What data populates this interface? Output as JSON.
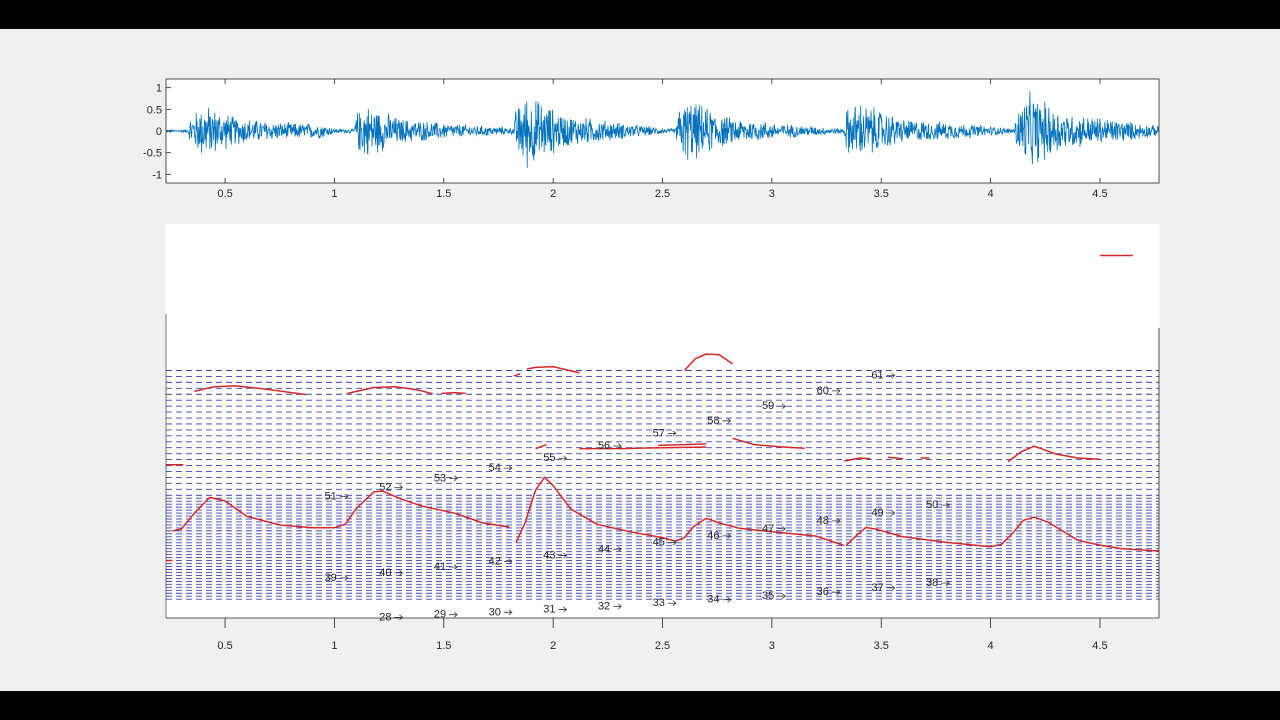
{
  "colors": {
    "background": "#f0f0f0",
    "axes_bg": "#ffffff",
    "waveform": "#0072bd",
    "pitch": "#d62728",
    "grid": "#3a44b8",
    "text": "#262626"
  },
  "chart_data": [
    {
      "type": "line",
      "name": "waveform",
      "title": "",
      "xlabel": "",
      "ylabel": "",
      "xlim": [
        0.23,
        4.77
      ],
      "ylim": [
        -1.2,
        1.2
      ],
      "xticks": [
        0.5,
        1,
        1.5,
        2,
        2.5,
        3,
        3.5,
        4,
        4.5
      ],
      "xtick_labels": [
        "0.5",
        "1",
        "1.5",
        "2",
        "2.5",
        "3",
        "3.5",
        "4",
        "4.5"
      ],
      "yticks": [
        1,
        0.5,
        0,
        -0.5,
        -1
      ],
      "ytick_labels": [
        "1",
        "0.5",
        "0",
        "-0.5",
        "-1"
      ],
      "envelope_x": [
        0.23,
        0.33,
        0.34,
        0.4,
        0.55,
        0.75,
        0.95,
        1.0,
        1.09,
        1.1,
        1.14,
        1.3,
        1.55,
        1.78,
        1.82,
        1.83,
        1.88,
        2.05,
        2.3,
        2.52,
        2.56,
        2.57,
        2.62,
        2.8,
        3.05,
        3.28,
        3.33,
        3.34,
        3.4,
        3.6,
        3.9,
        4.08,
        4.11,
        4.12,
        4.18,
        4.35,
        4.6,
        4.77
      ],
      "envelope_amp": [
        0.03,
        0.03,
        0.35,
        0.7,
        0.35,
        0.22,
        0.18,
        0.06,
        0.05,
        0.45,
        0.7,
        0.32,
        0.18,
        0.1,
        0.08,
        0.6,
        0.95,
        0.42,
        0.22,
        0.06,
        0.06,
        0.55,
        0.8,
        0.35,
        0.18,
        0.08,
        0.06,
        0.55,
        0.75,
        0.3,
        0.18,
        0.07,
        0.07,
        0.6,
        0.95,
        0.45,
        0.28,
        0.12
      ]
    },
    {
      "type": "line",
      "name": "pitch",
      "title": "",
      "xlabel": "",
      "ylabel": "",
      "xlim": [
        0.23,
        4.77
      ],
      "ylim": [
        0,
        100
      ],
      "xticks": [
        0.5,
        1,
        1.5,
        2,
        2.5,
        3,
        3.5,
        4,
        4.5
      ],
      "xtick_labels": [
        "0.5",
        "1",
        "1.5",
        "2",
        "2.5",
        "3",
        "3.5",
        "4",
        "4.5"
      ],
      "grid_values": [
        13,
        15,
        17,
        19,
        21,
        23,
        25,
        27,
        29,
        31,
        33,
        35,
        37,
        39,
        41,
        43,
        45,
        47,
        49,
        51,
        53,
        55,
        57,
        59,
        61,
        63,
        65,
        67,
        69,
        71,
        73,
        75,
        77,
        79,
        81,
        83,
        87,
        91,
        95,
        99,
        103,
        107,
        111,
        115,
        119,
        123,
        127,
        131,
        135,
        139,
        143,
        147,
        151,
        155,
        159,
        163,
        167
      ],
      "annotations": [
        {
          "label": "28",
          "x": 1.27,
          "y": 0.4
        },
        {
          "label": "29",
          "x": 1.52,
          "y": 1.1
        },
        {
          "label": "30",
          "x": 1.77,
          "y": 1.7
        },
        {
          "label": "31",
          "x": 2.02,
          "y": 2.4
        },
        {
          "label": "32",
          "x": 2.27,
          "y": 3.2
        },
        {
          "label": "33",
          "x": 2.52,
          "y": 4.0
        },
        {
          "label": "34",
          "x": 2.77,
          "y": 4.9
        },
        {
          "label": "35",
          "x": 3.02,
          "y": 5.8
        },
        {
          "label": "36",
          "x": 3.27,
          "y": 6.8
        },
        {
          "label": "37",
          "x": 3.52,
          "y": 7.9
        },
        {
          "label": "38",
          "x": 3.77,
          "y": 9.1
        },
        {
          "label": "39",
          "x": 1.02,
          "y": 10.4
        },
        {
          "label": "40",
          "x": 1.27,
          "y": 11.7
        },
        {
          "label": "41",
          "x": 1.52,
          "y": 13.2
        },
        {
          "label": "42",
          "x": 1.77,
          "y": 14.6
        },
        {
          "label": "43",
          "x": 2.02,
          "y": 16.1
        },
        {
          "label": "44",
          "x": 2.27,
          "y": 17.7
        },
        {
          "label": "45",
          "x": 2.52,
          "y": 19.4
        },
        {
          "label": "46",
          "x": 2.77,
          "y": 21.1
        },
        {
          "label": "47",
          "x": 3.02,
          "y": 22.9
        },
        {
          "label": "48",
          "x": 3.27,
          "y": 24.9
        },
        {
          "label": "49",
          "x": 3.52,
          "y": 26.9
        },
        {
          "label": "50",
          "x": 3.77,
          "y": 28.9
        },
        {
          "label": "51",
          "x": 1.02,
          "y": 31.1
        },
        {
          "label": "52",
          "x": 1.27,
          "y": 33.4
        },
        {
          "label": "53",
          "x": 1.52,
          "y": 35.7
        },
        {
          "label": "54",
          "x": 1.77,
          "y": 38.3
        },
        {
          "label": "55",
          "x": 2.02,
          "y": 40.8
        },
        {
          "label": "56",
          "x": 2.27,
          "y": 43.9
        },
        {
          "label": "57",
          "x": 2.52,
          "y": 47.1
        },
        {
          "label": "58",
          "x": 2.77,
          "y": 50.3
        },
        {
          "label": "59",
          "x": 3.02,
          "y": 54.0
        },
        {
          "label": "60",
          "x": 3.27,
          "y": 57.9
        },
        {
          "label": "61",
          "x": 3.52,
          "y": 61.8
        }
      ],
      "series": [
        {
          "x": [
            0.23,
            0.26
          ],
          "y": [
            14.6,
            14.6
          ]
        },
        {
          "x": [
            0.23,
            0.31
          ],
          "y": [
            38.9,
            38.9
          ]
        },
        {
          "x": [
            0.26,
            0.3,
            0.36,
            0.43,
            0.5,
            0.6,
            0.75,
            0.9,
            1.0,
            1.05,
            1.1,
            1.18,
            1.22,
            1.3,
            1.4,
            1.55,
            1.68,
            1.8
          ],
          "y": [
            22.1,
            22.6,
            26.6,
            30.6,
            29.7,
            25.8,
            23.6,
            22.9,
            22.9,
            23.8,
            27.8,
            32.0,
            32.2,
            30.3,
            28.4,
            26.6,
            24.1,
            23.1
          ]
        },
        {
          "x": [
            1.83,
            1.87,
            1.92,
            1.96,
            2.0,
            2.08,
            2.2,
            2.35,
            2.5,
            2.56,
            2.6,
            2.64,
            2.7,
            2.76,
            2.85,
            3.0,
            3.2,
            3.33
          ],
          "y": [
            19.2,
            23.9,
            32.5,
            35.7,
            33.6,
            27.7,
            23.8,
            21.9,
            20.4,
            19.5,
            20.4,
            23.1,
            25.3,
            24.1,
            22.8,
            21.9,
            20.8,
            18.4
          ]
        },
        {
          "x": [
            3.34,
            3.38,
            3.43,
            3.48,
            3.6,
            3.8,
            4.0,
            4.05,
            4.1,
            4.15,
            4.2,
            4.26,
            4.4,
            4.5,
            4.6,
            4.77
          ],
          "y": [
            18.4,
            20.6,
            23.0,
            22.5,
            20.6,
            19.2,
            18.1,
            18.7,
            21.5,
            24.8,
            25.6,
            24.4,
            19.7,
            18.5,
            17.6,
            17.0
          ]
        },
        {
          "x": [
            0.36,
            0.45,
            0.55,
            0.7,
            0.87
          ],
          "y": [
            57.5,
            58.7,
            58.9,
            58.0,
            56.7
          ]
        },
        {
          "x": [
            1.06,
            1.18,
            1.28,
            1.38,
            1.45
          ],
          "y": [
            57.0,
            58.5,
            58.7,
            57.9,
            56.9
          ]
        },
        {
          "x": [
            1.49,
            1.55,
            1.6
          ],
          "y": [
            57.0,
            57.2,
            57.0
          ]
        },
        {
          "x": [
            1.82,
            1.85
          ],
          "y": [
            61.4,
            62.0
          ]
        },
        {
          "x": [
            1.88,
            1.92,
            2.0,
            2.12
          ],
          "y": [
            63.2,
            63.6,
            63.8,
            62.2
          ]
        },
        {
          "x": [
            1.92,
            1.97
          ],
          "y": [
            43.0,
            44.0
          ]
        },
        {
          "x": [
            2.12,
            2.3,
            2.5,
            2.7
          ],
          "y": [
            43.0,
            43.0,
            43.2,
            43.4
          ]
        },
        {
          "x": [
            2.6,
            2.65,
            2.7,
            2.76,
            2.82
          ],
          "y": [
            62.8,
            65.8,
            67.0,
            66.8,
            64.5
          ]
        },
        {
          "x": [
            2.48,
            2.6,
            2.7
          ],
          "y": [
            43.8,
            44.0,
            44.2
          ]
        },
        {
          "x": [
            2.82,
            2.92,
            3.05,
            3.15
          ],
          "y": [
            45.6,
            44.0,
            43.4,
            43.1
          ]
        },
        {
          "x": [
            3.33,
            3.4,
            3.45
          ],
          "y": [
            39.8,
            40.6,
            40.4
          ]
        },
        {
          "x": [
            3.53,
            3.6
          ],
          "y": [
            40.8,
            40.4
          ]
        },
        {
          "x": [
            3.68,
            3.72
          ],
          "y": [
            40.6,
            40.6
          ]
        },
        {
          "x": [
            4.08,
            4.14,
            4.2,
            4.3,
            4.4,
            4.5
          ],
          "y": [
            39.7,
            42.2,
            43.6,
            41.6,
            40.6,
            40.3
          ]
        },
        {
          "x": [
            4.5,
            4.65
          ],
          "y": [
            92.0,
            92.0
          ]
        }
      ]
    }
  ]
}
